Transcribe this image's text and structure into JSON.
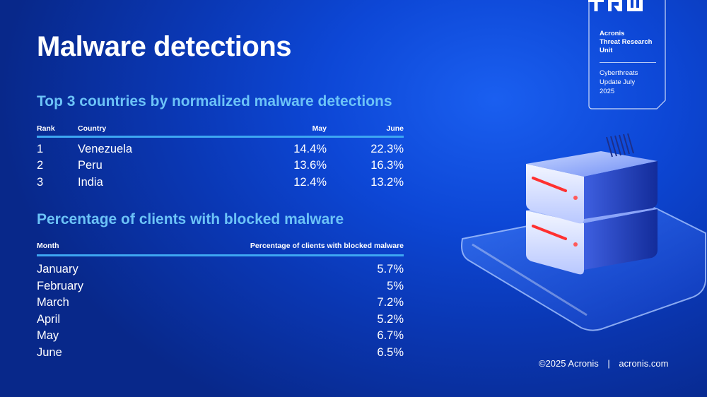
{
  "title": "Malware detections",
  "countries": {
    "heading": "Top 3 countries by normalized malware detections",
    "columns": {
      "rank": "Rank",
      "country": "Country",
      "may": "May",
      "june": "June"
    },
    "rows": [
      {
        "rank": "1",
        "country": "Venezuela",
        "may": "14.4%",
        "june": "22.3%"
      },
      {
        "rank": "2",
        "country": "Peru",
        "may": "13.6%",
        "june": "16.3%"
      },
      {
        "rank": "3",
        "country": "India",
        "may": "12.4%",
        "june": "13.2%"
      }
    ]
  },
  "clients": {
    "heading": "Percentage of clients with blocked malware",
    "columns": {
      "month": "Month",
      "pct": "Percentage of clients with blocked malware"
    },
    "rows": [
      {
        "month": "January",
        "pct": "5.7%"
      },
      {
        "month": "February",
        "pct": "5%"
      },
      {
        "month": "March",
        "pct": "7.2%"
      },
      {
        "month": "April",
        "pct": "5.2%"
      },
      {
        "month": "May",
        "pct": "6.7%"
      },
      {
        "month": "June",
        "pct": "6.5%"
      }
    ]
  },
  "badge": {
    "org_line1": "Acronis",
    "org_line2": "Threat Research",
    "org_line3": "Unit",
    "sub_line1": "Cyberthreats",
    "sub_line2": "Update July",
    "sub_line3": "2025"
  },
  "footer": {
    "copyright": "©2025 Acronis",
    "separator": "|",
    "site": "acronis.com"
  },
  "colors": {
    "background": "#0d47d6",
    "heading": "#6cc3f7",
    "rule": "#3ea7f2",
    "text": "#ffffff"
  },
  "icons": {
    "badge_logo": "tru-logo-icon",
    "illustration": "server-stack-icon"
  }
}
